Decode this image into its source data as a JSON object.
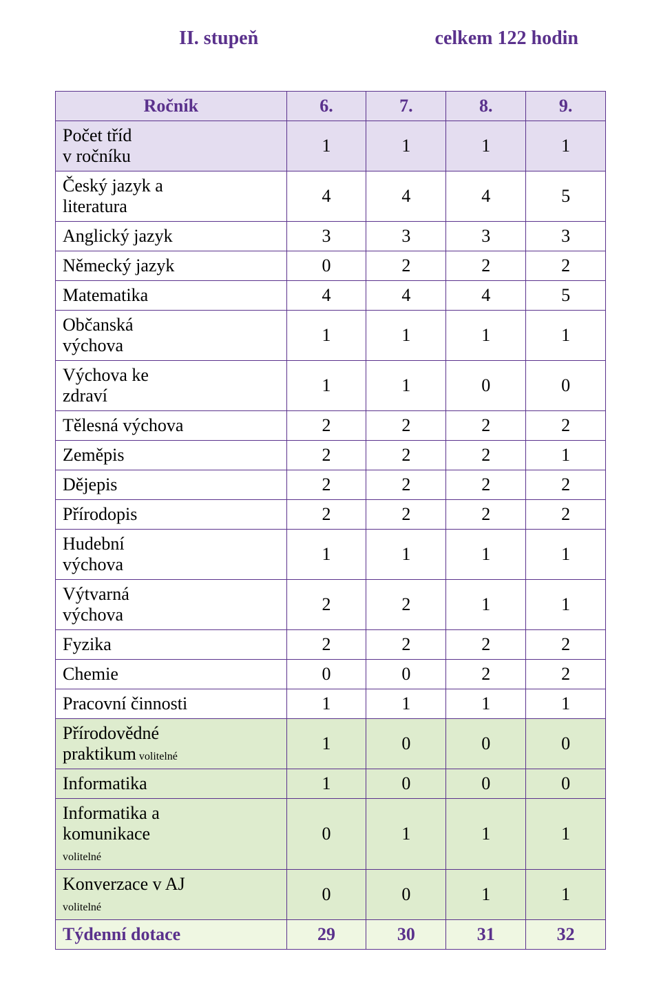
{
  "heading": {
    "left": "II. stupeň",
    "right": "celkem 122 hodin",
    "color": "#5a318c",
    "fontsize_pt": 28
  },
  "table": {
    "border_color": "#5a318c",
    "label_col_width_pct": 42,
    "val_col_width_pct": 14.5,
    "row_fontsize_pt": 26,
    "bands": {
      "header": "#e4ddf0",
      "plain": "#ffffff",
      "optional": "#deecce",
      "footer": "#eff7e2"
    },
    "rows": [
      {
        "label": "Ročník",
        "values": [
          "6.",
          "7.",
          "8.",
          "9."
        ],
        "band": "header",
        "bold": true,
        "color": "#5a318c",
        "label_align": "center"
      },
      {
        "label": "Počet tříd\nv ročníku",
        "values": [
          "1",
          "1",
          "1",
          "1"
        ],
        "band": "header",
        "bold": false,
        "color": "#000000",
        "label_align": "left"
      },
      {
        "label": "Český jazyk a\nliteratura",
        "values": [
          "4",
          "4",
          "4",
          "5"
        ],
        "band": "plain",
        "bold": false,
        "color": "#000000",
        "label_align": "left"
      },
      {
        "label": "Anglický jazyk",
        "values": [
          "3",
          "3",
          "3",
          "3"
        ],
        "band": "plain",
        "bold": false,
        "color": "#000000",
        "label_align": "left"
      },
      {
        "label": "Německý jazyk",
        "values": [
          "0",
          "2",
          "2",
          "2"
        ],
        "band": "plain",
        "bold": false,
        "color": "#000000",
        "label_align": "left"
      },
      {
        "label": "Matematika",
        "values": [
          "4",
          "4",
          "4",
          "5"
        ],
        "band": "plain",
        "bold": false,
        "color": "#000000",
        "label_align": "left"
      },
      {
        "label": "Občanská\nvýchova",
        "values": [
          "1",
          "1",
          "1",
          "1"
        ],
        "band": "plain",
        "bold": false,
        "color": "#000000",
        "label_align": "left"
      },
      {
        "label": "Výchova  ke\nzdraví",
        "values": [
          "1",
          "1",
          "0",
          "0"
        ],
        "band": "plain",
        "bold": false,
        "color": "#000000",
        "label_align": "left"
      },
      {
        "label": "Tělesná výchova",
        "values": [
          "2",
          "2",
          "2",
          "2"
        ],
        "band": "plain",
        "bold": false,
        "color": "#000000",
        "label_align": "left"
      },
      {
        "label": "Zeměpis",
        "values": [
          "2",
          "2",
          "2",
          "1"
        ],
        "band": "plain",
        "bold": false,
        "color": "#000000",
        "label_align": "left"
      },
      {
        "label": "Dějepis",
        "values": [
          "2",
          "2",
          "2",
          "2"
        ],
        "band": "plain",
        "bold": false,
        "color": "#000000",
        "label_align": "left"
      },
      {
        "label": "Přírodopis",
        "values": [
          "2",
          "2",
          "2",
          "2"
        ],
        "band": "plain",
        "bold": false,
        "color": "#000000",
        "label_align": "left"
      },
      {
        "label": "Hudební\nvýchova",
        "values": [
          "1",
          "1",
          "1",
          "1"
        ],
        "band": "plain",
        "bold": false,
        "color": "#000000",
        "label_align": "left"
      },
      {
        "label": "Výtvarná\nvýchova",
        "values": [
          "2",
          "2",
          "1",
          "1"
        ],
        "band": "plain",
        "bold": false,
        "color": "#000000",
        "label_align": "left"
      },
      {
        "label": "Fyzika",
        "values": [
          "2",
          "2",
          "2",
          "2"
        ],
        "band": "plain",
        "bold": false,
        "color": "#000000",
        "label_align": "left"
      },
      {
        "label": "Chemie",
        "values": [
          "0",
          "0",
          "2",
          "2"
        ],
        "band": "plain",
        "bold": false,
        "color": "#000000",
        "label_align": "left"
      },
      {
        "label": "Pracovní činnosti",
        "values": [
          "1",
          "1",
          "1",
          "1"
        ],
        "band": "plain",
        "bold": false,
        "color": "#000000",
        "label_align": "left"
      },
      {
        "label": "Přírodovědné\npraktikum",
        "label_suffix": "  volitelné",
        "values": [
          "1",
          "0",
          "0",
          "0"
        ],
        "band": "optional",
        "bold": false,
        "color": "#000000",
        "label_align": "left"
      },
      {
        "label": "Informatika",
        "values": [
          "1",
          "0",
          "0",
          "0"
        ],
        "band": "optional",
        "bold": false,
        "color": "#000000",
        "label_align": "left"
      },
      {
        "label": "Informatika a\nkomunikace",
        "label_after": "volitelné",
        "values": [
          "0",
          "1",
          "1",
          "1"
        ],
        "band": "optional",
        "bold": false,
        "color": "#000000",
        "label_align": "left"
      },
      {
        "label": "Konverzace v AJ",
        "label_after": "volitelné",
        "values": [
          "0",
          "0",
          "1",
          "1"
        ],
        "band": "optional",
        "bold": false,
        "color": "#000000",
        "label_align": "left"
      },
      {
        "label": "Týdenní dotace",
        "values": [
          "29",
          "30",
          "31",
          "32"
        ],
        "band": "footer",
        "bold": true,
        "color": "#5a318c",
        "label_align": "left"
      }
    ],
    "suffix_fontsize_pt": 16
  }
}
